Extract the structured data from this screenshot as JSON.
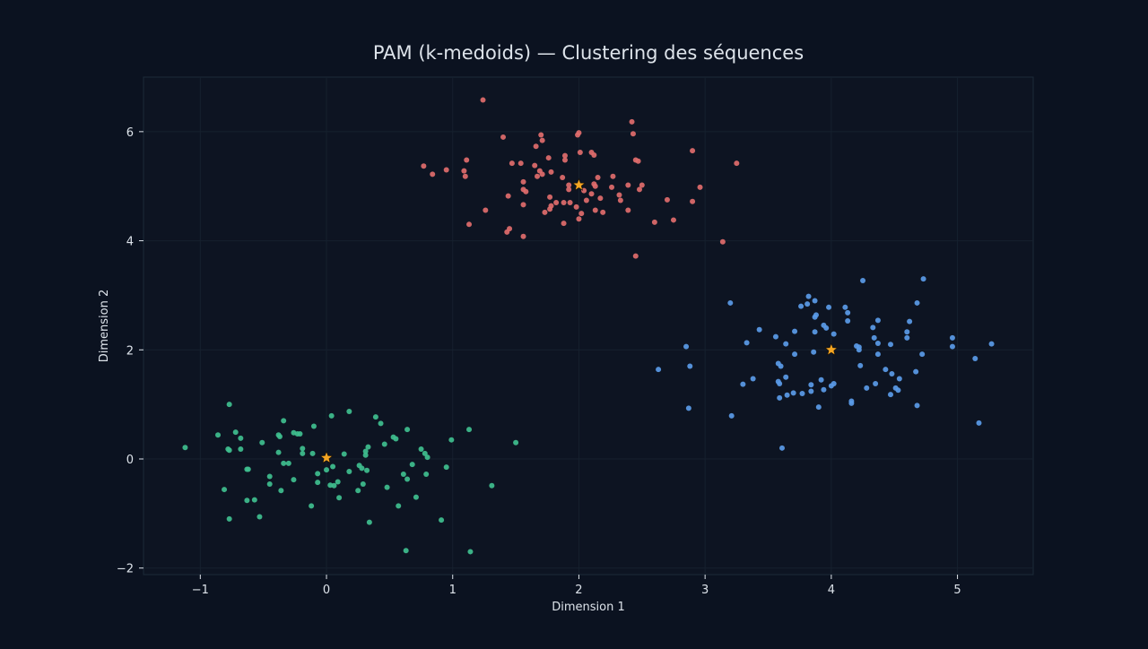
{
  "chart_data": {
    "type": "scatter",
    "title": "PAM (k-medoids) — Clustering des séquences",
    "xlabel": "Dimension 1",
    "ylabel": "Dimension 2",
    "xlim": [
      -1.45,
      5.6
    ],
    "ylim": [
      -2.12,
      7.0
    ],
    "xticks": [
      -1,
      0,
      1,
      2,
      3,
      4,
      5
    ],
    "xtick_labels": [
      "−1",
      "0",
      "1",
      "2",
      "3",
      "4",
      "5"
    ],
    "yticks": [
      -2,
      0,
      2,
      4,
      6
    ],
    "ytick_labels": [
      "−2",
      "0",
      "2",
      "4",
      "6"
    ],
    "grid": true,
    "legend": "none",
    "colors": {
      "background": "#0b1220",
      "axes_bg": "#0d1422",
      "frame": "#1c2a38",
      "grid": "#16202e",
      "text": "#dde3ea",
      "medoid": "#f5a623"
    },
    "series": [
      {
        "color": "#e06c6c",
        "medoid": [
          2.0,
          5.02
        ],
        "points": [
          [
            1.24,
            6.58
          ],
          [
            2.42,
            6.18
          ],
          [
            1.4,
            5.9
          ],
          [
            2.0,
            5.98
          ],
          [
            2.43,
            5.96
          ],
          [
            1.7,
            5.94
          ],
          [
            1.99,
            5.94
          ],
          [
            1.66,
            5.73
          ],
          [
            1.71,
            5.84
          ],
          [
            2.01,
            5.62
          ],
          [
            2.1,
            5.62
          ],
          [
            2.12,
            5.57
          ],
          [
            2.9,
            5.65
          ],
          [
            1.89,
            5.56
          ],
          [
            1.89,
            5.48
          ],
          [
            2.45,
            5.48
          ],
          [
            2.47,
            5.46
          ],
          [
            1.76,
            5.52
          ],
          [
            1.11,
            5.48
          ],
          [
            1.47,
            5.42
          ],
          [
            1.54,
            5.42
          ],
          [
            1.65,
            5.38
          ],
          [
            0.77,
            5.37
          ],
          [
            0.95,
            5.3
          ],
          [
            1.09,
            5.28
          ],
          [
            1.69,
            5.28
          ],
          [
            1.71,
            5.22
          ],
          [
            1.78,
            5.26
          ],
          [
            1.87,
            5.16
          ],
          [
            3.25,
            5.42
          ],
          [
            0.84,
            5.22
          ],
          [
            1.1,
            5.18
          ],
          [
            1.67,
            5.18
          ],
          [
            2.15,
            5.16
          ],
          [
            2.27,
            5.18
          ],
          [
            1.56,
            5.08
          ],
          [
            2.12,
            5.04
          ],
          [
            1.92,
            5.02
          ],
          [
            2.13,
            5.0
          ],
          [
            2.39,
            5.02
          ],
          [
            2.5,
            5.02
          ],
          [
            2.96,
            4.98
          ],
          [
            1.56,
            4.94
          ],
          [
            1.58,
            4.9
          ],
          [
            2.26,
            4.98
          ],
          [
            2.48,
            4.94
          ],
          [
            1.92,
            4.94
          ],
          [
            2.04,
            4.92
          ],
          [
            2.1,
            4.86
          ],
          [
            2.32,
            4.84
          ],
          [
            1.44,
            4.82
          ],
          [
            1.77,
            4.8
          ],
          [
            2.17,
            4.78
          ],
          [
            1.82,
            4.7
          ],
          [
            1.88,
            4.7
          ],
          [
            2.06,
            4.74
          ],
          [
            1.93,
            4.7
          ],
          [
            2.33,
            4.74
          ],
          [
            2.7,
            4.75
          ],
          [
            2.9,
            4.72
          ],
          [
            1.56,
            4.66
          ],
          [
            1.78,
            4.64
          ],
          [
            1.98,
            4.62
          ],
          [
            1.26,
            4.56
          ],
          [
            1.77,
            4.58
          ],
          [
            2.13,
            4.56
          ],
          [
            2.19,
            4.52
          ],
          [
            2.39,
            4.56
          ],
          [
            1.73,
            4.52
          ],
          [
            2.02,
            4.5
          ],
          [
            2.0,
            4.4
          ],
          [
            1.13,
            4.3
          ],
          [
            1.88,
            4.32
          ],
          [
            2.6,
            4.34
          ],
          [
            2.75,
            4.38
          ],
          [
            1.45,
            4.22
          ],
          [
            1.43,
            4.16
          ],
          [
            1.56,
            4.08
          ],
          [
            3.14,
            3.98
          ],
          [
            2.45,
            3.72
          ]
        ]
      },
      {
        "color": "#5a9be8",
        "medoid": [
          4.0,
          2.0
        ],
        "points": [
          [
            4.73,
            3.3
          ],
          [
            4.25,
            3.27
          ],
          [
            3.82,
            2.98
          ],
          [
            3.87,
            2.9
          ],
          [
            3.2,
            2.86
          ],
          [
            4.68,
            2.86
          ],
          [
            3.81,
            2.84
          ],
          [
            3.76,
            2.8
          ],
          [
            3.98,
            2.78
          ],
          [
            4.11,
            2.78
          ],
          [
            4.13,
            2.68
          ],
          [
            3.87,
            2.6
          ],
          [
            3.88,
            2.64
          ],
          [
            4.37,
            2.54
          ],
          [
            4.13,
            2.53
          ],
          [
            4.62,
            2.52
          ],
          [
            3.94,
            2.45
          ],
          [
            3.96,
            2.4
          ],
          [
            4.33,
            2.41
          ],
          [
            3.43,
            2.37
          ],
          [
            3.71,
            2.34
          ],
          [
            3.87,
            2.33
          ],
          [
            4.02,
            2.29
          ],
          [
            4.6,
            2.33
          ],
          [
            4.6,
            2.22
          ],
          [
            3.56,
            2.24
          ],
          [
            4.34,
            2.22
          ],
          [
            4.96,
            2.22
          ],
          [
            3.33,
            2.13
          ],
          [
            3.64,
            2.11
          ],
          [
            4.37,
            2.12
          ],
          [
            4.47,
            2.1
          ],
          [
            5.27,
            2.11
          ],
          [
            4.96,
            2.06
          ],
          [
            2.85,
            2.06
          ],
          [
            4.2,
            2.07
          ],
          [
            4.22,
            2.05
          ],
          [
            4.22,
            2.0
          ],
          [
            3.86,
            1.96
          ],
          [
            3.71,
            1.92
          ],
          [
            4.37,
            1.92
          ],
          [
            4.72,
            1.92
          ],
          [
            3.58,
            1.75
          ],
          [
            3.6,
            1.7
          ],
          [
            5.14,
            1.84
          ],
          [
            2.88,
            1.7
          ],
          [
            4.23,
            1.71
          ],
          [
            2.63,
            1.64
          ],
          [
            4.43,
            1.64
          ],
          [
            4.67,
            1.6
          ],
          [
            4.48,
            1.56
          ],
          [
            3.38,
            1.47
          ],
          [
            3.64,
            1.5
          ],
          [
            3.92,
            1.45
          ],
          [
            4.54,
            1.47
          ],
          [
            3.58,
            1.42
          ],
          [
            3.3,
            1.37
          ],
          [
            3.59,
            1.38
          ],
          [
            3.84,
            1.36
          ],
          [
            4.02,
            1.38
          ],
          [
            4.0,
            1.34
          ],
          [
            4.28,
            1.3
          ],
          [
            4.35,
            1.38
          ],
          [
            4.51,
            1.3
          ],
          [
            3.94,
            1.27
          ],
          [
            3.84,
            1.24
          ],
          [
            4.53,
            1.26
          ],
          [
            3.7,
            1.21
          ],
          [
            3.77,
            1.2
          ],
          [
            3.65,
            1.17
          ],
          [
            4.47,
            1.18
          ],
          [
            3.59,
            1.12
          ],
          [
            4.16,
            1.06
          ],
          [
            4.16,
            1.02
          ],
          [
            3.9,
            0.95
          ],
          [
            4.68,
            0.98
          ],
          [
            2.87,
            0.93
          ],
          [
            3.21,
            0.79
          ],
          [
            5.17,
            0.66
          ],
          [
            3.61,
            0.2
          ]
        ]
      },
      {
        "color": "#3fbf8f",
        "medoid": [
          0.0,
          0.02
        ],
        "points": [
          [
            -0.77,
            1.0
          ],
          [
            0.18,
            0.87
          ],
          [
            0.04,
            0.79
          ],
          [
            0.39,
            0.77
          ],
          [
            -0.34,
            0.7
          ],
          [
            0.43,
            0.65
          ],
          [
            -0.1,
            0.6
          ],
          [
            0.64,
            0.54
          ],
          [
            -0.72,
            0.49
          ],
          [
            -0.26,
            0.48
          ],
          [
            -0.23,
            0.46
          ],
          [
            -0.21,
            0.46
          ],
          [
            1.13,
            0.54
          ],
          [
            -0.86,
            0.44
          ],
          [
            -0.38,
            0.44
          ],
          [
            -0.37,
            0.41
          ],
          [
            -0.68,
            0.38
          ],
          [
            0.53,
            0.4
          ],
          [
            0.55,
            0.37
          ],
          [
            0.99,
            0.35
          ],
          [
            -0.51,
            0.3
          ],
          [
            1.5,
            0.3
          ],
          [
            0.46,
            0.27
          ],
          [
            -1.12,
            0.21
          ],
          [
            0.33,
            0.22
          ],
          [
            0.75,
            0.18
          ],
          [
            -0.78,
            0.18
          ],
          [
            -0.19,
            0.19
          ],
          [
            -0.68,
            0.18
          ],
          [
            -0.77,
            0.16
          ],
          [
            0.31,
            0.14
          ],
          [
            -0.38,
            0.12
          ],
          [
            -0.19,
            0.1
          ],
          [
            0.14,
            0.09
          ],
          [
            -0.11,
            0.1
          ],
          [
            0.31,
            0.07
          ],
          [
            0.78,
            0.1
          ],
          [
            0.8,
            0.03
          ],
          [
            -0.34,
            -0.08
          ],
          [
            -0.3,
            -0.08
          ],
          [
            0.26,
            -0.12
          ],
          [
            0.68,
            -0.1
          ],
          [
            0.05,
            -0.14
          ],
          [
            0.95,
            -0.15
          ],
          [
            0.28,
            -0.17
          ],
          [
            -0.63,
            -0.19
          ],
          [
            -0.62,
            -0.19
          ],
          [
            0.32,
            -0.21
          ],
          [
            0.0,
            -0.2
          ],
          [
            0.18,
            -0.23
          ],
          [
            -0.07,
            -0.27
          ],
          [
            0.61,
            -0.28
          ],
          [
            0.79,
            -0.28
          ],
          [
            0.64,
            -0.37
          ],
          [
            -0.26,
            -0.38
          ],
          [
            -0.45,
            -0.32
          ],
          [
            0.09,
            -0.42
          ],
          [
            -0.07,
            -0.43
          ],
          [
            -0.45,
            -0.46
          ],
          [
            0.29,
            -0.46
          ],
          [
            0.03,
            -0.48
          ],
          [
            0.06,
            -0.49
          ],
          [
            1.31,
            -0.49
          ],
          [
            0.48,
            -0.52
          ],
          [
            -0.81,
            -0.56
          ],
          [
            0.25,
            -0.58
          ],
          [
            -0.36,
            -0.58
          ],
          [
            0.1,
            -0.71
          ],
          [
            0.71,
            -0.7
          ],
          [
            -0.63,
            -0.76
          ],
          [
            -0.57,
            -0.75
          ],
          [
            0.57,
            -0.86
          ],
          [
            -0.12,
            -0.86
          ],
          [
            -0.53,
            -1.06
          ],
          [
            -0.77,
            -1.1
          ],
          [
            0.91,
            -1.12
          ],
          [
            0.34,
            -1.16
          ],
          [
            0.63,
            -1.68
          ],
          [
            1.14,
            -1.7
          ]
        ]
      }
    ]
  }
}
